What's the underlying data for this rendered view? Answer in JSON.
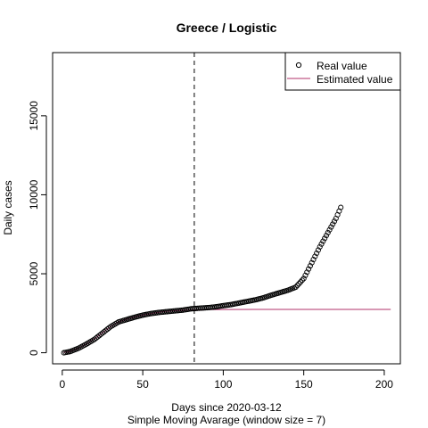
{
  "chart_data": {
    "type": "scatter",
    "title": "Greece / Logistic",
    "xlabel": "Days since 2020-03-12",
    "xlabel_sub": "Simple Moving Avarage (window size = 7)",
    "ylabel": "Daily cases",
    "xlim": [
      -6,
      210
    ],
    "ylim": [
      -700,
      19000
    ],
    "x_ticks": [
      0,
      50,
      100,
      150,
      200
    ],
    "x_tick_labels": [
      "0",
      "50",
      "100",
      "150",
      "200"
    ],
    "y_ticks": [
      0,
      5000,
      10000,
      15000
    ],
    "y_tick_labels": [
      "0",
      "5000",
      "10000",
      "15000"
    ],
    "vline_x": 82,
    "legend": {
      "placement": "top-right",
      "entries": [
        {
          "label": "Real value",
          "symbol": "circle",
          "color": "#000000"
        },
        {
          "label": "Estimated value",
          "symbol": "line",
          "color": "#b0306a"
        }
      ]
    },
    "colors": {
      "real": "#000000",
      "estimated": "#b0306a"
    },
    "real_series": {
      "name": "Real value",
      "x_start": 1,
      "x_end": 173,
      "knots_x": [
        1,
        5,
        10,
        15,
        20,
        25,
        30,
        35,
        40,
        45,
        50,
        55,
        60,
        65,
        70,
        75,
        80,
        85,
        90,
        95,
        100,
        105,
        110,
        115,
        120,
        125,
        130,
        135,
        140,
        145,
        150,
        155,
        160,
        165,
        170,
        173
      ],
      "knots_y": [
        0,
        80,
        280,
        550,
        850,
        1250,
        1650,
        1950,
        2100,
        2250,
        2380,
        2480,
        2550,
        2600,
        2650,
        2700,
        2780,
        2820,
        2850,
        2900,
        2980,
        3050,
        3150,
        3250,
        3350,
        3480,
        3650,
        3800,
        3950,
        4150,
        4700,
        5700,
        6700,
        7600,
        8500,
        9200
      ]
    },
    "estimated_series": {
      "name": "Estimated value",
      "x": [
        1,
        5,
        10,
        15,
        20,
        25,
        30,
        35,
        40,
        45,
        50,
        55,
        60,
        65,
        70,
        75,
        82,
        90,
        100,
        120,
        140,
        160,
        180,
        204
      ],
      "y": [
        20,
        90,
        290,
        560,
        880,
        1270,
        1650,
        1950,
        2130,
        2270,
        2390,
        2480,
        2560,
        2620,
        2660,
        2690,
        2720,
        2730,
        2735,
        2740,
        2740,
        2740,
        2740,
        2740
      ]
    }
  }
}
